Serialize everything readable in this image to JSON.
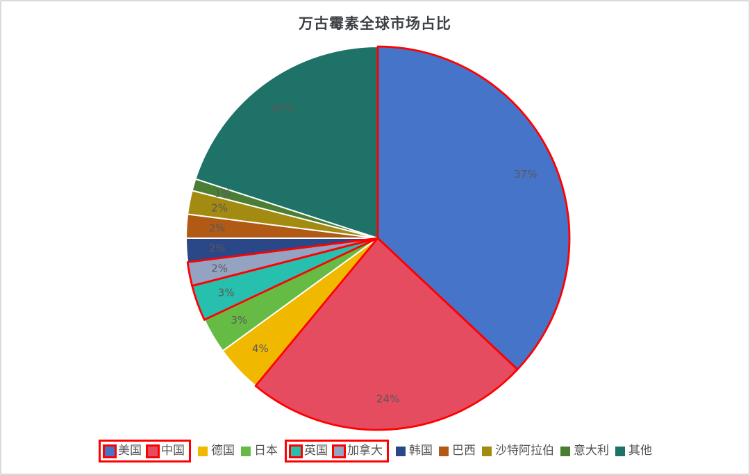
{
  "page": {
    "background": "#ffffff",
    "border_color": "#d9d9d9"
  },
  "chart_data": {
    "type": "pie",
    "title": "万古霉素全球市场占比",
    "start_angle_deg": 0,
    "direction": "clockwise",
    "label_color": "#595959",
    "slice_border_color": "#ffffff",
    "highlight_color": "#ff0000",
    "slices": [
      {
        "name": "美国",
        "value": 37,
        "label": "37%",
        "color": "#4674c8",
        "highlighted": true
      },
      {
        "name": "中国",
        "value": 24,
        "label": "24%",
        "color": "#e54c5f",
        "highlighted": true
      },
      {
        "name": "德国",
        "value": 4,
        "label": "4%",
        "color": "#f1b800",
        "highlighted": false
      },
      {
        "name": "日本",
        "value": 3,
        "label": "3%",
        "color": "#66bb44",
        "highlighted": false
      },
      {
        "name": "英国",
        "value": 3,
        "label": "3%",
        "color": "#27bfad",
        "highlighted": true
      },
      {
        "name": "加拿大",
        "value": 2,
        "label": "2%",
        "color": "#93a3c1",
        "highlighted": true
      },
      {
        "name": "韩国",
        "value": 2,
        "label": "2%",
        "color": "#2a4787",
        "highlighted": false
      },
      {
        "name": "巴西",
        "value": 2,
        "label": "2%",
        "color": "#b05a16",
        "highlighted": false
      },
      {
        "name": "沙特阿拉伯",
        "value": 2,
        "label": "2%",
        "color": "#a38a10",
        "highlighted": false
      },
      {
        "name": "意大利",
        "value": 1,
        "label": "1%",
        "color": "#4b7e35",
        "highlighted": false
      },
      {
        "name": "其他",
        "value": 20,
        "label": "20%",
        "color": "#1f7267",
        "highlighted": false
      }
    ],
    "legend": {
      "position": "bottom",
      "text_color": "#545454",
      "boxed_groups": [
        [
          "美国",
          "中国"
        ],
        [
          "英国",
          "加拿大"
        ]
      ]
    }
  }
}
